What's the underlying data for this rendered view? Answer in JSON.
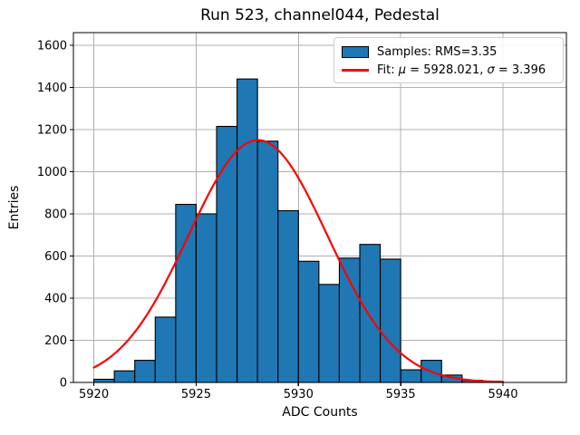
{
  "title": "Run 523, channel044, Pedestal",
  "xlabel": "ADC Counts",
  "ylabel": "Entries",
  "legend": {
    "samples_label": "Samples: RMS=3.35",
    "fit_prefix": "Fit: ",
    "fit_mu_symbol": "μ",
    "fit_mu_value": " = 5928.021, ",
    "fit_sigma_symbol": "σ",
    "fit_sigma_value": " = 3.396"
  },
  "colors": {
    "bar_fill": "#1f77b4",
    "bar_edge": "#000000",
    "fit_line": "#ff0000",
    "grid": "#b0b0b0",
    "spine": "#000000"
  },
  "chart_data": {
    "type": "bar",
    "subtype": "histogram",
    "title": "Run 523, channel044, Pedestal",
    "xlabel": "ADC Counts",
    "ylabel": "Entries",
    "bins": {
      "start": 5920,
      "width": 1,
      "count": 20
    },
    "categories": [
      "5920-5921",
      "5921-5922",
      "5922-5923",
      "5923-5924",
      "5924-5925",
      "5925-5926",
      "5926-5927",
      "5927-5928",
      "5928-5929",
      "5929-5930",
      "5930-5931",
      "5931-5932",
      "5932-5933",
      "5933-5934",
      "5934-5935",
      "5935-5936",
      "5936-5937",
      "5937-5938",
      "5938-5939",
      "5939-5940"
    ],
    "values": [
      15,
      55,
      105,
      310,
      845,
      800,
      1215,
      1440,
      1145,
      815,
      575,
      465,
      590,
      655,
      585,
      60,
      105,
      35,
      10,
      5
    ],
    "x_ticks": [
      5920,
      5925,
      5930,
      5935,
      5940
    ],
    "y_ticks": [
      0,
      200,
      400,
      600,
      800,
      1000,
      1200,
      1400,
      1600
    ],
    "xlim": [
      5919.0,
      5943.1
    ],
    "ylim": [
      0,
      1660
    ],
    "grid": true,
    "legend_position": "upper right",
    "series": [
      {
        "name": "Samples: RMS=3.35",
        "kind": "histogram",
        "rms": 3.35,
        "fill_color": "#1f77b4",
        "edge_color": "#000000"
      },
      {
        "name": "Fit: μ = 5928.021, σ = 3.396",
        "kind": "gaussian-fit",
        "mu": 5928.021,
        "sigma": 3.396,
        "peak": 1150,
        "x_range": [
          5920,
          5940
        ],
        "color": "#ff0000"
      }
    ]
  }
}
